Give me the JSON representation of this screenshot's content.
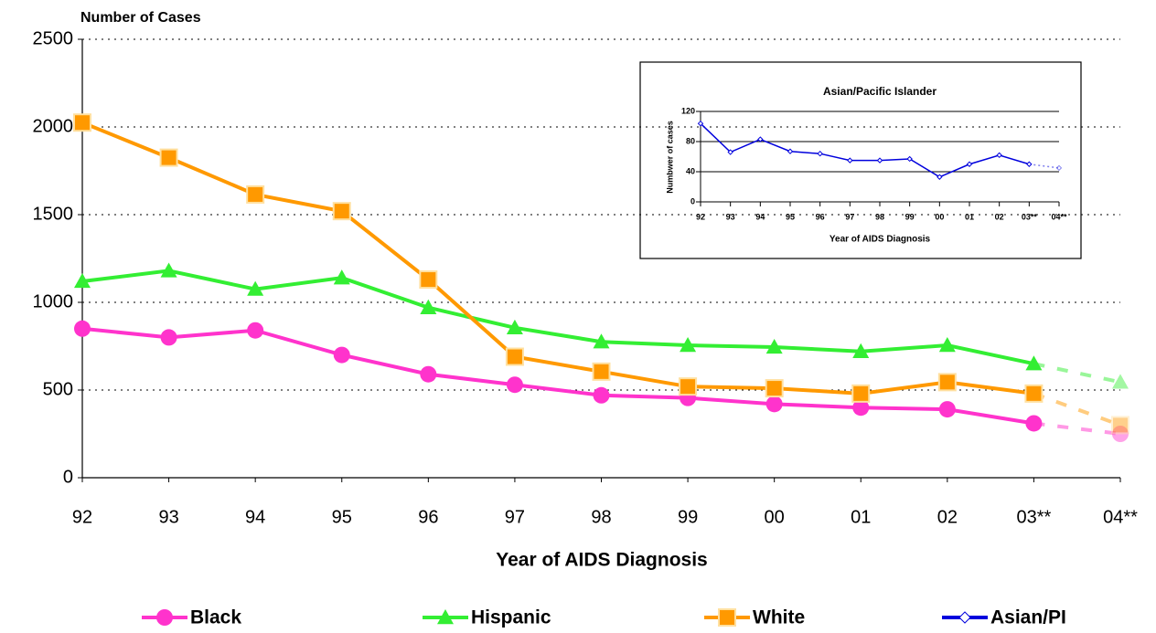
{
  "chart_data": [
    {
      "type": "line",
      "y_label": "Number of  Cases",
      "x_label": "Year of AIDS Diagnosis",
      "categories": [
        "92",
        "93",
        "94",
        "95",
        "96",
        "97",
        "98",
        "99",
        "00",
        "01",
        "02",
        "03**",
        "04**"
      ],
      "ylim": [
        0,
        2500
      ],
      "yticks": [
        0,
        500,
        1000,
        1500,
        2000,
        2500
      ],
      "grid": true,
      "legend": "bottom",
      "series": [
        {
          "name": "Black",
          "color": "#ff33cc",
          "marker": "circle",
          "values": [
            850,
            800,
            840,
            700,
            590,
            530,
            470,
            455,
            420,
            400,
            390,
            310,
            250
          ]
        },
        {
          "name": "Hispanic",
          "color": "#33ee33",
          "marker": "triangle",
          "values": [
            1120,
            1180,
            1075,
            1140,
            970,
            855,
            775,
            755,
            745,
            720,
            755,
            650,
            545
          ]
        },
        {
          "name": "White",
          "color": "#ff9900",
          "marker": "square",
          "values": [
            2025,
            1825,
            1615,
            1520,
            1130,
            690,
            605,
            520,
            510,
            480,
            545,
            480,
            300
          ]
        }
      ]
    },
    {
      "type": "line",
      "title": "Asian/Pacific Islander",
      "y_label": "Numbwer of cases",
      "x_label": "Year of AIDS Diagnosis",
      "categories": [
        "92",
        "93",
        "94",
        "95",
        "96",
        "97",
        "98",
        "99",
        "00",
        "01",
        "02",
        "03**",
        "04**"
      ],
      "ylim": [
        0,
        120
      ],
      "yticks": [
        0,
        40,
        80,
        120
      ],
      "grid": true,
      "series": [
        {
          "name": "Asian/PI",
          "color": "#0000dd",
          "marker": "diamond",
          "values": [
            104,
            66,
            83,
            67,
            64,
            55,
            55,
            57,
            33,
            50,
            62,
            50,
            45
          ]
        }
      ]
    }
  ]
}
